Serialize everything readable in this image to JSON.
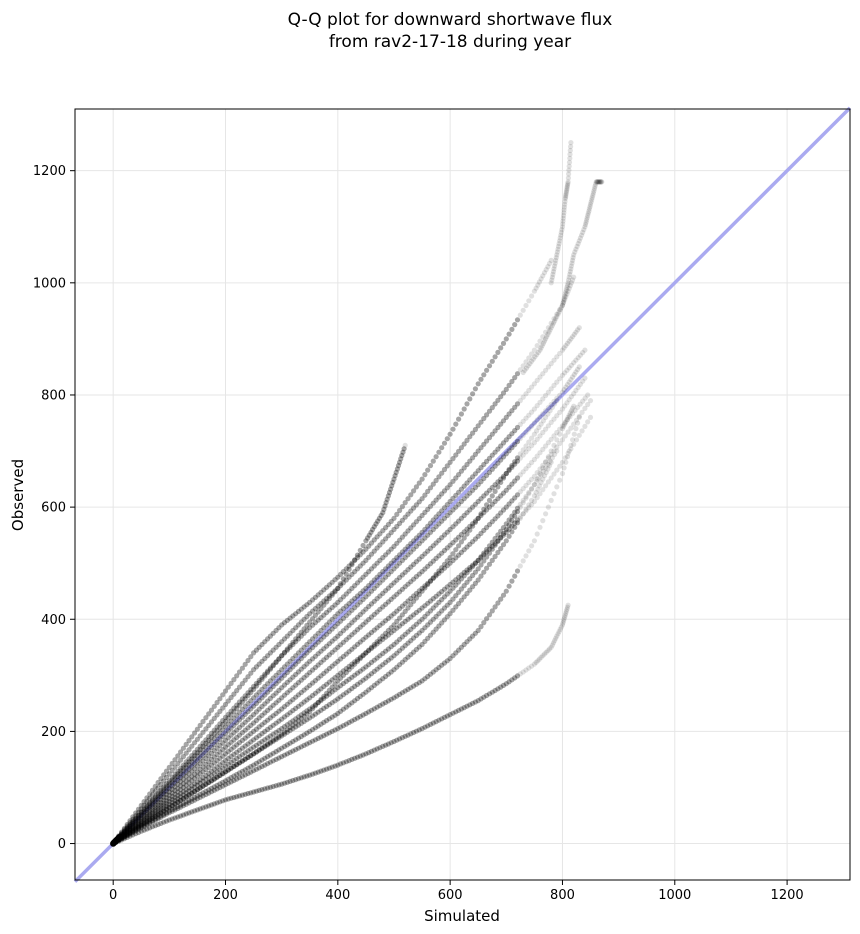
{
  "chart_data": {
    "type": "scatter",
    "title": "Q-Q plot for downward shortwave flux",
    "subtitle": "from rav2-17-18 during year",
    "xlabel": "Simulated",
    "ylabel": "Observed",
    "xlim": [
      -68,
      1312
    ],
    "ylim": [
      -65,
      1310
    ],
    "x_ticks": [
      0,
      200,
      400,
      600,
      800,
      1000,
      1200
    ],
    "y_ticks": [
      0,
      200,
      400,
      600,
      800,
      1000,
      1200
    ],
    "grid": true,
    "legend": "none",
    "point_color": "#000000",
    "reference_line": {
      "from": [
        -68,
        -68
      ],
      "to": [
        1312,
        1312
      ],
      "color": "#aaaaf0"
    },
    "series": [
      {
        "x": [
          0,
          50,
          100,
          150,
          200,
          250,
          300,
          350,
          400,
          450,
          500,
          550,
          600,
          650,
          700,
          750,
          780
        ],
        "y": [
          0,
          68,
          136,
          204,
          272,
          340,
          390,
          430,
          475,
          525,
          580,
          650,
          730,
          820,
          900,
          985,
          1040
        ]
      },
      {
        "x": [
          0,
          50,
          100,
          150,
          200,
          250,
          300,
          350,
          400,
          450,
          500,
          550,
          600,
          650,
          700,
          750,
          800,
          820
        ],
        "y": [
          0,
          62,
          124,
          186,
          248,
          310,
          360,
          410,
          455,
          505,
          560,
          615,
          680,
          745,
          810,
          880,
          960,
          1010
        ]
      },
      {
        "x": [
          0,
          50,
          100,
          150,
          200,
          250,
          300,
          350,
          400,
          450,
          500,
          550,
          600,
          650,
          700,
          750,
          800,
          830
        ],
        "y": [
          0,
          56,
          112,
          168,
          225,
          280,
          335,
          385,
          430,
          480,
          530,
          585,
          640,
          700,
          760,
          820,
          880,
          920
        ]
      },
      {
        "x": [
          0,
          50,
          100,
          150,
          200,
          250,
          300,
          350,
          400,
          450,
          500,
          550,
          600,
          650,
          700,
          750,
          800,
          840
        ],
        "y": [
          0,
          52,
          104,
          156,
          208,
          260,
          310,
          360,
          410,
          455,
          505,
          555,
          610,
          665,
          720,
          775,
          835,
          880
        ]
      },
      {
        "x": [
          0,
          50,
          100,
          150,
          200,
          250,
          300,
          350,
          400,
          450,
          500,
          550,
          600,
          650,
          700,
          750,
          800,
          830
        ],
        "y": [
          0,
          50,
          98,
          147,
          196,
          245,
          295,
          345,
          392,
          440,
          490,
          540,
          590,
          640,
          695,
          750,
          805,
          850
        ]
      },
      {
        "x": [
          0,
          50,
          100,
          150,
          200,
          250,
          300,
          350,
          400,
          450,
          500,
          550,
          600,
          650,
          700,
          750,
          800,
          840
        ],
        "y": [
          0,
          46,
          92,
          138,
          184,
          230,
          278,
          325,
          370,
          418,
          465,
          512,
          560,
          610,
          660,
          715,
          775,
          830
        ]
      },
      {
        "x": [
          0,
          50,
          100,
          150,
          200,
          250,
          300,
          350,
          400,
          450,
          500,
          550,
          600,
          650,
          700,
          750,
          800,
          845
        ],
        "y": [
          0,
          43,
          86,
          128,
          172,
          215,
          260,
          305,
          350,
          395,
          440,
          485,
          532,
          580,
          630,
          685,
          745,
          800
        ]
      },
      {
        "x": [
          0,
          50,
          100,
          150,
          200,
          250,
          300,
          350,
          400,
          450,
          500,
          550,
          600,
          650,
          700,
          750,
          800,
          850
        ],
        "y": [
          0,
          40,
          80,
          120,
          160,
          200,
          240,
          282,
          325,
          368,
          410,
          455,
          500,
          548,
          600,
          655,
          720,
          790
        ]
      },
      {
        "x": [
          0,
          50,
          100,
          150,
          200,
          250,
          300,
          350,
          400,
          450,
          500,
          550,
          600,
          650,
          700,
          750,
          800,
          850
        ],
        "y": [
          0,
          38,
          75,
          110,
          148,
          185,
          222,
          260,
          300,
          340,
          380,
          420,
          462,
          505,
          555,
          610,
          680,
          760
        ]
      },
      {
        "x": [
          0,
          50,
          100,
          150,
          200,
          250,
          300,
          350,
          400,
          450,
          500,
          550,
          600,
          650,
          700,
          750,
          790
        ],
        "y": [
          0,
          35,
          70,
          104,
          138,
          172,
          205,
          240,
          278,
          315,
          355,
          400,
          450,
          505,
          570,
          640,
          700
        ]
      },
      {
        "x": [
          0,
          50,
          100,
          150,
          200,
          250,
          300,
          350,
          400,
          450,
          500,
          550,
          600,
          650,
          700,
          750,
          800,
          820
        ],
        "y": [
          0,
          33,
          65,
          96,
          128,
          160,
          192,
          224,
          258,
          295,
          335,
          380,
          430,
          490,
          560,
          640,
          740,
          780
        ]
      },
      {
        "x": [
          0,
          50,
          100,
          150,
          200,
          250,
          300,
          350,
          400,
          450,
          500,
          550,
          600,
          650,
          700,
          750,
          780
        ],
        "y": [
          0,
          30,
          58,
          85,
          112,
          140,
          170,
          200,
          232,
          270,
          310,
          355,
          410,
          470,
          540,
          620,
          680
        ]
      },
      {
        "x": [
          0,
          50,
          100,
          150,
          200,
          250,
          300,
          350,
          400,
          450,
          500,
          550,
          600,
          650,
          700,
          750,
          800,
          830
        ],
        "y": [
          0,
          28,
          55,
          80,
          105,
          130,
          155,
          180,
          205,
          232,
          260,
          290,
          330,
          380,
          450,
          540,
          660,
          760
        ]
      },
      {
        "x": [
          0,
          50,
          100,
          150,
          200,
          250,
          300,
          350,
          400,
          450,
          500,
          550,
          600,
          650,
          700,
          750,
          790
        ],
        "y": [
          0,
          32,
          64,
          96,
          128,
          160,
          195,
          235,
          290,
          340,
          390,
          450,
          510,
          580,
          660,
          730,
          790
        ]
      },
      {
        "x": [
          0,
          50,
          100,
          150,
          200,
          250,
          300,
          350,
          400,
          450,
          480,
          500,
          520
        ],
        "y": [
          0,
          55,
          108,
          162,
          218,
          275,
          335,
          395,
          455,
          540,
          590,
          650,
          710
        ]
      },
      {
        "x": [
          0,
          50,
          100,
          150,
          200,
          250,
          300,
          350,
          400,
          450,
          500,
          550,
          600,
          650,
          700,
          750,
          780,
          800,
          810
        ],
        "y": [
          0,
          22,
          42,
          60,
          78,
          92,
          106,
          122,
          140,
          160,
          182,
          205,
          230,
          255,
          285,
          320,
          350,
          390,
          425
        ]
      },
      {
        "x": [
          730,
          760,
          780,
          800,
          810,
          820,
          840,
          850,
          860,
          870
        ],
        "y": [
          840,
          880,
          920,
          960,
          1000,
          1050,
          1100,
          1140,
          1180,
          1180
        ]
      },
      {
        "x": [
          780,
          790,
          800,
          805,
          810,
          815
        ],
        "y": [
          1000,
          1050,
          1100,
          1150,
          1180,
          1250
        ]
      }
    ]
  }
}
